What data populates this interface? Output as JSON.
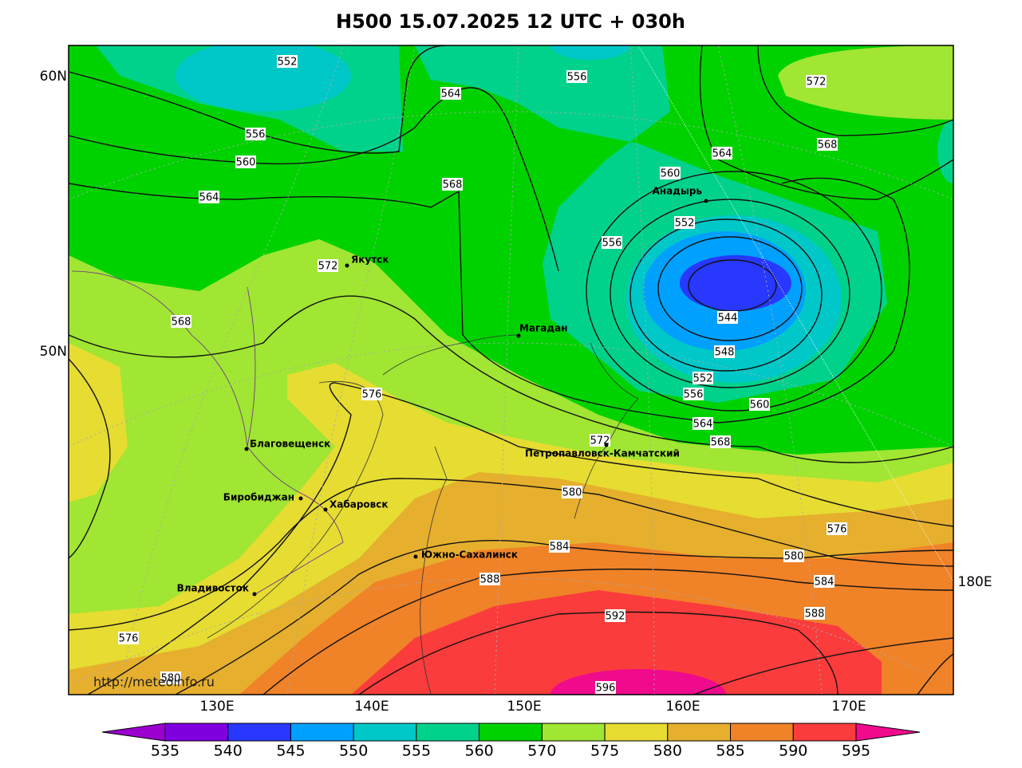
{
  "title": "H500  15.07.2025 12 UTC + 030h",
  "latitude_labels": [
    "60N",
    "50N"
  ],
  "longitude_labels": [
    "130E",
    "140E",
    "150E",
    "160E",
    "170E",
    "180E"
  ],
  "contour_labels": [
    552,
    564,
    556,
    572,
    556,
    560,
    564,
    568,
    564,
    568,
    560,
    552,
    556,
    572,
    568,
    544,
    548,
    552,
    556,
    560,
    576,
    564,
    568,
    572,
    580,
    576,
    580,
    584,
    584,
    588,
    588,
    592,
    576,
    580,
    596
  ],
  "cities": [
    "Якутск",
    "Магадан",
    "Анадырь",
    "Благовещенск",
    "Биробиджан",
    "Хабаровск",
    "Петропавловск-Камчатский",
    "Южно-Сахалинск",
    "Владивосток"
  ],
  "watermark": "http://meteoinfo.ru",
  "colorbar": {
    "labels": [
      535,
      540,
      545,
      550,
      555,
      560,
      570,
      575,
      580,
      585,
      590,
      595
    ],
    "colors": [
      "#9a00d0",
      "#8000e0",
      "#2838ff",
      "#00a0ff",
      "#00c8c8",
      "#00d28c",
      "#00d200",
      "#a0e632",
      "#e6dc32",
      "#e6af2d",
      "#f08228",
      "#fa3c3c",
      "#f00a8c"
    ]
  }
}
